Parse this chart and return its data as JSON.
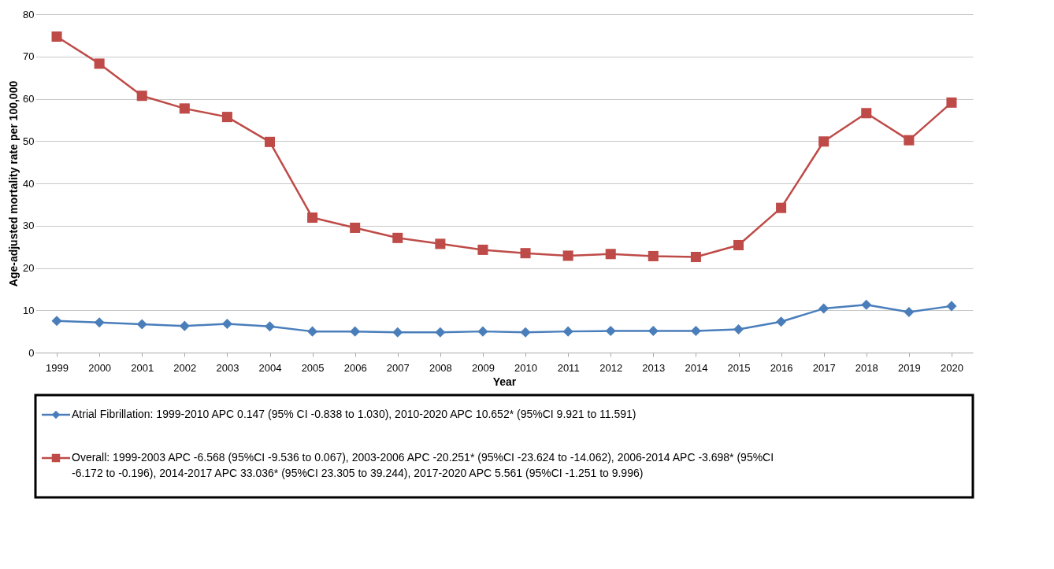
{
  "chart_data": {
    "type": "line",
    "xlabel": "Year",
    "ylabel": "Age-adjusted mortality rate per 100,000",
    "categories": [
      "1999",
      "2000",
      "2001",
      "2002",
      "2003",
      "2004",
      "2005",
      "2006",
      "2007",
      "2008",
      "2009",
      "2010",
      "2011",
      "2012",
      "2013",
      "2014",
      "2015",
      "2016",
      "2017",
      "2018",
      "2019",
      "2020"
    ],
    "series": [
      {
        "name": "Atrial Fibrillation: 1999-2010 APC 0.147 (95% CI -0.838 to 1.030), 2010-2020 APC 10.652* (95%CI 9.921 to 11.591)",
        "color": "#4a7ebb",
        "marker": "diamond",
        "values": [
          7.5,
          7.1,
          6.7,
          6.3,
          6.8,
          6.2,
          5.0,
          5.0,
          4.8,
          4.8,
          5.0,
          4.8,
          5.0,
          5.1,
          5.1,
          5.1,
          5.5,
          7.3,
          10.4,
          11.3,
          9.6,
          11.0
        ]
      },
      {
        "name": "Overall: 1999-2003 APC -6.568 (95%CI -9.536 to 0.067), 2003-2006 APC -20.251* (95%CI -23.624 to -14.062), 2006-2014 APC -3.698* (95%CI -6.172 to -0.196), 2014-2017 APC 33.036* (95%CI 23.305 to 39.244), 2017-2020 APC 5.561 (95%CI -1.251 to 9.996)",
        "color": "#be4b48",
        "marker": "square",
        "values": [
          74.7,
          68.3,
          60.7,
          57.7,
          55.7,
          49.8,
          31.9,
          29.5,
          27.1,
          25.7,
          24.3,
          23.5,
          22.9,
          23.3,
          22.8,
          22.6,
          25.4,
          34.2,
          49.9,
          56.6,
          50.2,
          59.1
        ]
      }
    ],
    "ylim": [
      0,
      80
    ],
    "yticks": [
      0,
      10,
      20,
      30,
      40,
      50,
      60,
      70,
      80
    ],
    "grid": "y",
    "legend": "bottom",
    "line_style": "solid"
  }
}
